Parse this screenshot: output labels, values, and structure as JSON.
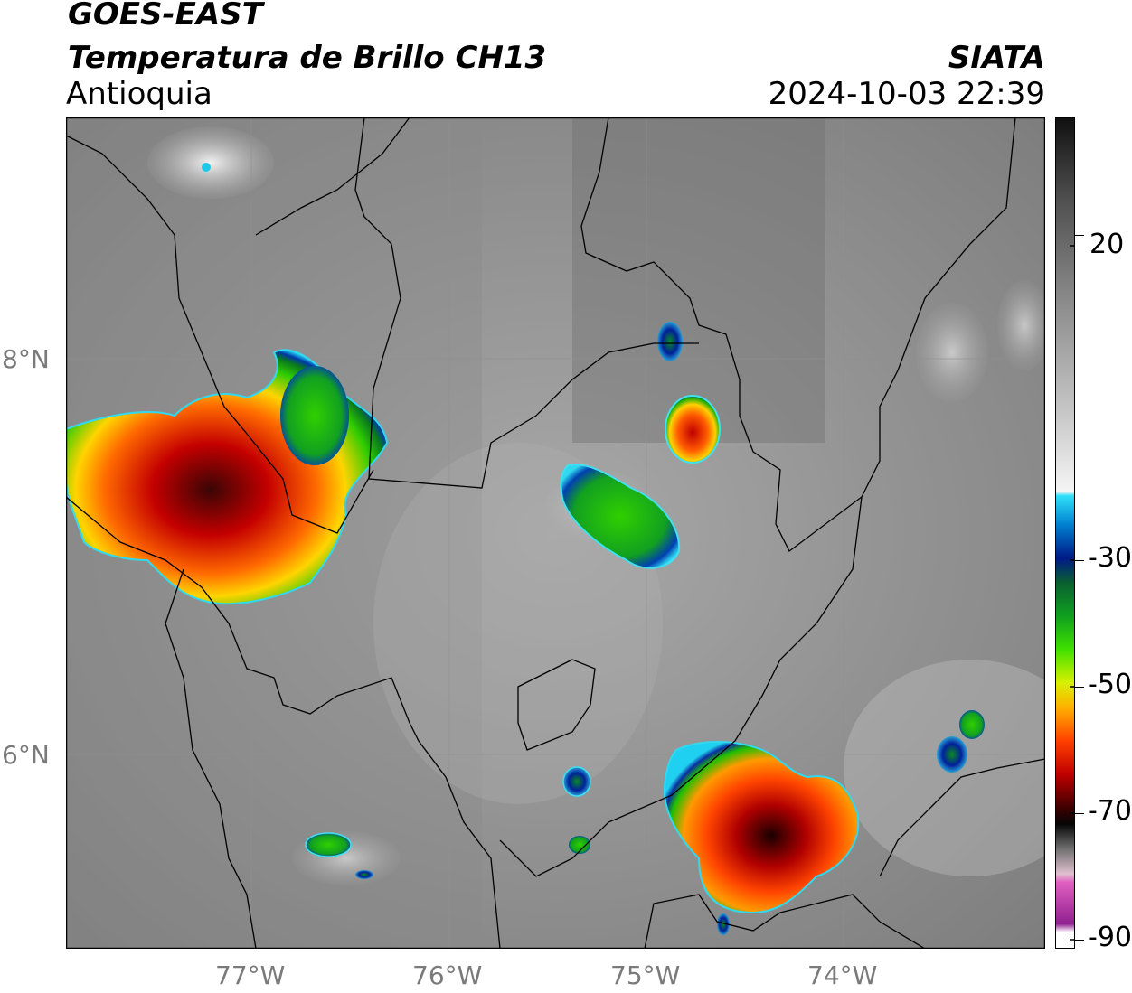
{
  "header": {
    "satellite": "GOES-EAST",
    "product": "Temperatura de Brillo CH13",
    "region": "Antioquia",
    "org": "SIATA",
    "datetime": "2024-10-03 22:39"
  },
  "map": {
    "lat_labels": [
      "8°N",
      "6°N"
    ],
    "lon_labels": [
      "77°W",
      "76°W",
      "75°W",
      "74°W"
    ]
  },
  "colorbar": {
    "ticks": [
      "20",
      "-30",
      "-50",
      "-70",
      "-90"
    ]
  }
}
